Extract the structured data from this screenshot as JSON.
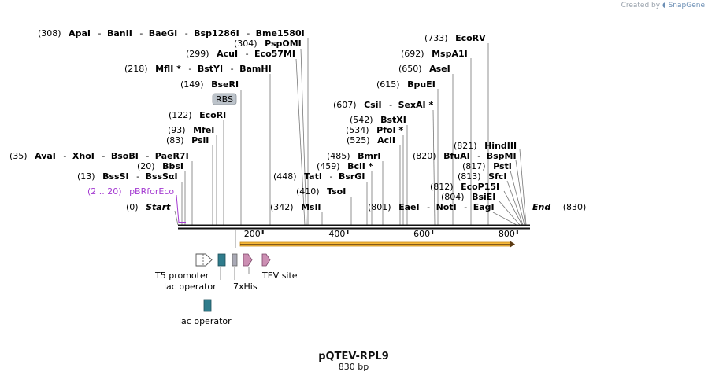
{
  "watermark": {
    "prefix": "Created by",
    "brand": "SnapGene"
  },
  "plasmid": {
    "name": "pQTEV-RPL9",
    "length_label": "830 bp",
    "total_bp": 830
  },
  "ruler": {
    "ticks": [
      "200",
      "400",
      "600",
      "800"
    ]
  },
  "sites": [
    {
      "id": "apaI-group",
      "pos": "(308)",
      "names": [
        "ApaI",
        "BanII",
        "BaeGI",
        "Bsp1286I",
        "Bme1580I"
      ]
    },
    {
      "id": "pspomi",
      "pos": "(304)",
      "names": [
        "PspOMI"
      ]
    },
    {
      "id": "acuI-group",
      "pos": "(299)",
      "names": [
        "AcuI",
        "Eco57MI"
      ]
    },
    {
      "id": "mfli-group",
      "pos": "(218)",
      "names": [
        "MflI *",
        "BstYI",
        "BamHI"
      ]
    },
    {
      "id": "bseri",
      "pos": "(149)",
      "names": [
        "BseRI"
      ]
    },
    {
      "id": "ecori",
      "pos": "(122)",
      "names": [
        "EcoRI"
      ]
    },
    {
      "id": "mfei",
      "pos": "(93)",
      "names": [
        "MfeI"
      ]
    },
    {
      "id": "psii",
      "pos": "(83)",
      "names": [
        "PsiI"
      ]
    },
    {
      "id": "avai-group",
      "pos": "(35)",
      "names": [
        "AvaI",
        "XhoI",
        "BsoBI",
        "PaeR7I"
      ]
    },
    {
      "id": "bbsi",
      "pos": "(20)",
      "names": [
        "BbsI"
      ]
    },
    {
      "id": "bsssi-group",
      "pos": "(13)",
      "names": [
        "BssSI",
        "BssSαI"
      ]
    },
    {
      "id": "start",
      "pos": "(0)",
      "names": [
        "Start"
      ]
    },
    {
      "id": "ecorv",
      "pos": "(733)",
      "names": [
        "EcoRV"
      ]
    },
    {
      "id": "mspa1i",
      "pos": "(692)",
      "names": [
        "MspA1I"
      ]
    },
    {
      "id": "asei",
      "pos": "(650)",
      "names": [
        "AseI"
      ]
    },
    {
      "id": "bpuei",
      "pos": "(615)",
      "names": [
        "BpuEI"
      ]
    },
    {
      "id": "csii-group",
      "pos": "(607)",
      "names": [
        "CsiI",
        "SexAI *"
      ]
    },
    {
      "id": "bstxi",
      "pos": "(542)",
      "names": [
        "BstXI"
      ]
    },
    {
      "id": "pfoi",
      "pos": "(534)",
      "names": [
        "PfoI *"
      ]
    },
    {
      "id": "acli",
      "pos": "(525)",
      "names": [
        "AclI"
      ]
    },
    {
      "id": "bmri",
      "pos": "(485)",
      "names": [
        "BmrI"
      ]
    },
    {
      "id": "bcli",
      "pos": "(459)",
      "names": [
        "BclI *"
      ]
    },
    {
      "id": "tati-group",
      "pos": "(448)",
      "names": [
        "TatI",
        "BsrGI"
      ]
    },
    {
      "id": "tsoi",
      "pos": "(410)",
      "names": [
        "TsoI"
      ]
    },
    {
      "id": "msli",
      "pos": "(342)",
      "names": [
        "MslI"
      ]
    },
    {
      "id": "eaei-group",
      "pos": "(801)",
      "names": [
        "EaeI",
        "NotI",
        "EagI"
      ]
    },
    {
      "id": "hindiii",
      "pos": "(821)",
      "names": [
        "HindIII"
      ]
    },
    {
      "id": "bfuai-group",
      "pos": "(820)",
      "names": [
        "BfuAI",
        "BspMI"
      ]
    },
    {
      "id": "psti",
      "pos": "(817)",
      "names": [
        "PstI"
      ]
    },
    {
      "id": "sfci",
      "pos": "(813)",
      "names": [
        "SfcI"
      ]
    },
    {
      "id": "ecop15i",
      "pos": "(812)",
      "names": [
        "EcoP15I"
      ]
    },
    {
      "id": "bsiei",
      "pos": "(804)",
      "names": [
        "BsiEI"
      ]
    },
    {
      "id": "end",
      "pos": "(830)",
      "names": [
        "End"
      ]
    }
  ],
  "primer": {
    "range": "(2 .. 20)",
    "name": "pBRforEco"
  },
  "rbs": {
    "label": "RBS"
  },
  "features": {
    "t5_promoter": "T5 promoter",
    "lac_operator_1": "lac operator",
    "his_tag": "7xHis",
    "tev_site": "TEV site",
    "lac_operator_2": "lac operator"
  },
  "colors": {
    "orf_fill": "#f6b93b",
    "operator": "#2f7c8c",
    "tag": "#a9a9b5",
    "tev": "#cc8fb3",
    "primer": "#a43bd1",
    "rbs_fill": "#bcc3ca"
  }
}
